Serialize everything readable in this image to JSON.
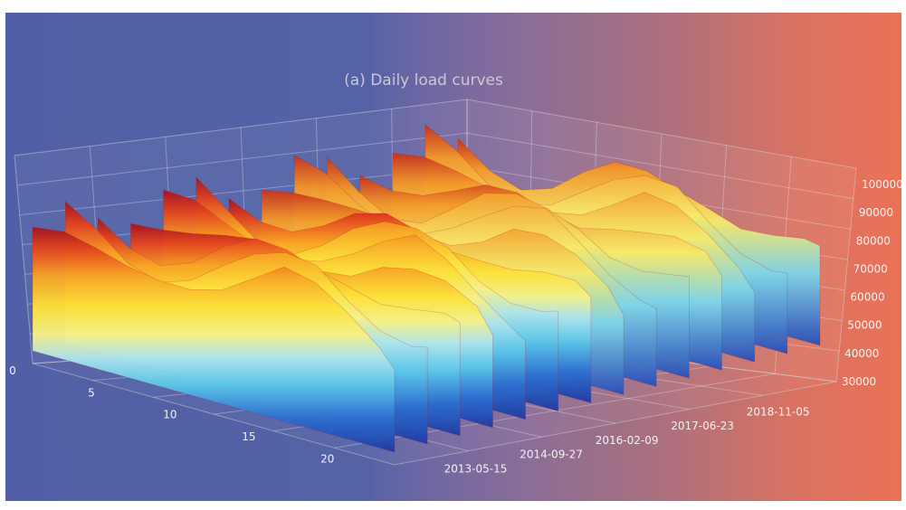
{
  "chart_data": {
    "type": "surface",
    "title": "(a) Daily load curves",
    "xlabel": "",
    "ylabel": "",
    "zlabel": "",
    "hour_axis": {
      "ticks": [
        0,
        5,
        10,
        15,
        20
      ],
      "range": [
        0,
        23
      ]
    },
    "date_axis": {
      "ticks": [
        "2013-05-15",
        "2014-09-27",
        "2016-02-09",
        "2017-06-23",
        "2018-11-05"
      ],
      "range": [
        "2012-01-01",
        "2019-12-31"
      ]
    },
    "z_axis": {
      "ticks": [
        30000,
        40000,
        50000,
        60000,
        70000,
        80000,
        90000,
        100000
      ],
      "range": [
        30000,
        100000
      ]
    },
    "colormap": "jet",
    "grid": true,
    "surface_profile": {
      "x_hour": [
        0,
        2,
        4,
        6,
        8,
        10,
        12,
        14,
        16,
        18,
        20,
        22,
        23
      ],
      "load_front_edge": [
        88000,
        84000,
        80000,
        80000,
        84000,
        88000,
        90000,
        92000,
        94000,
        90000,
        86000,
        82000,
        78000
      ]
    }
  }
}
